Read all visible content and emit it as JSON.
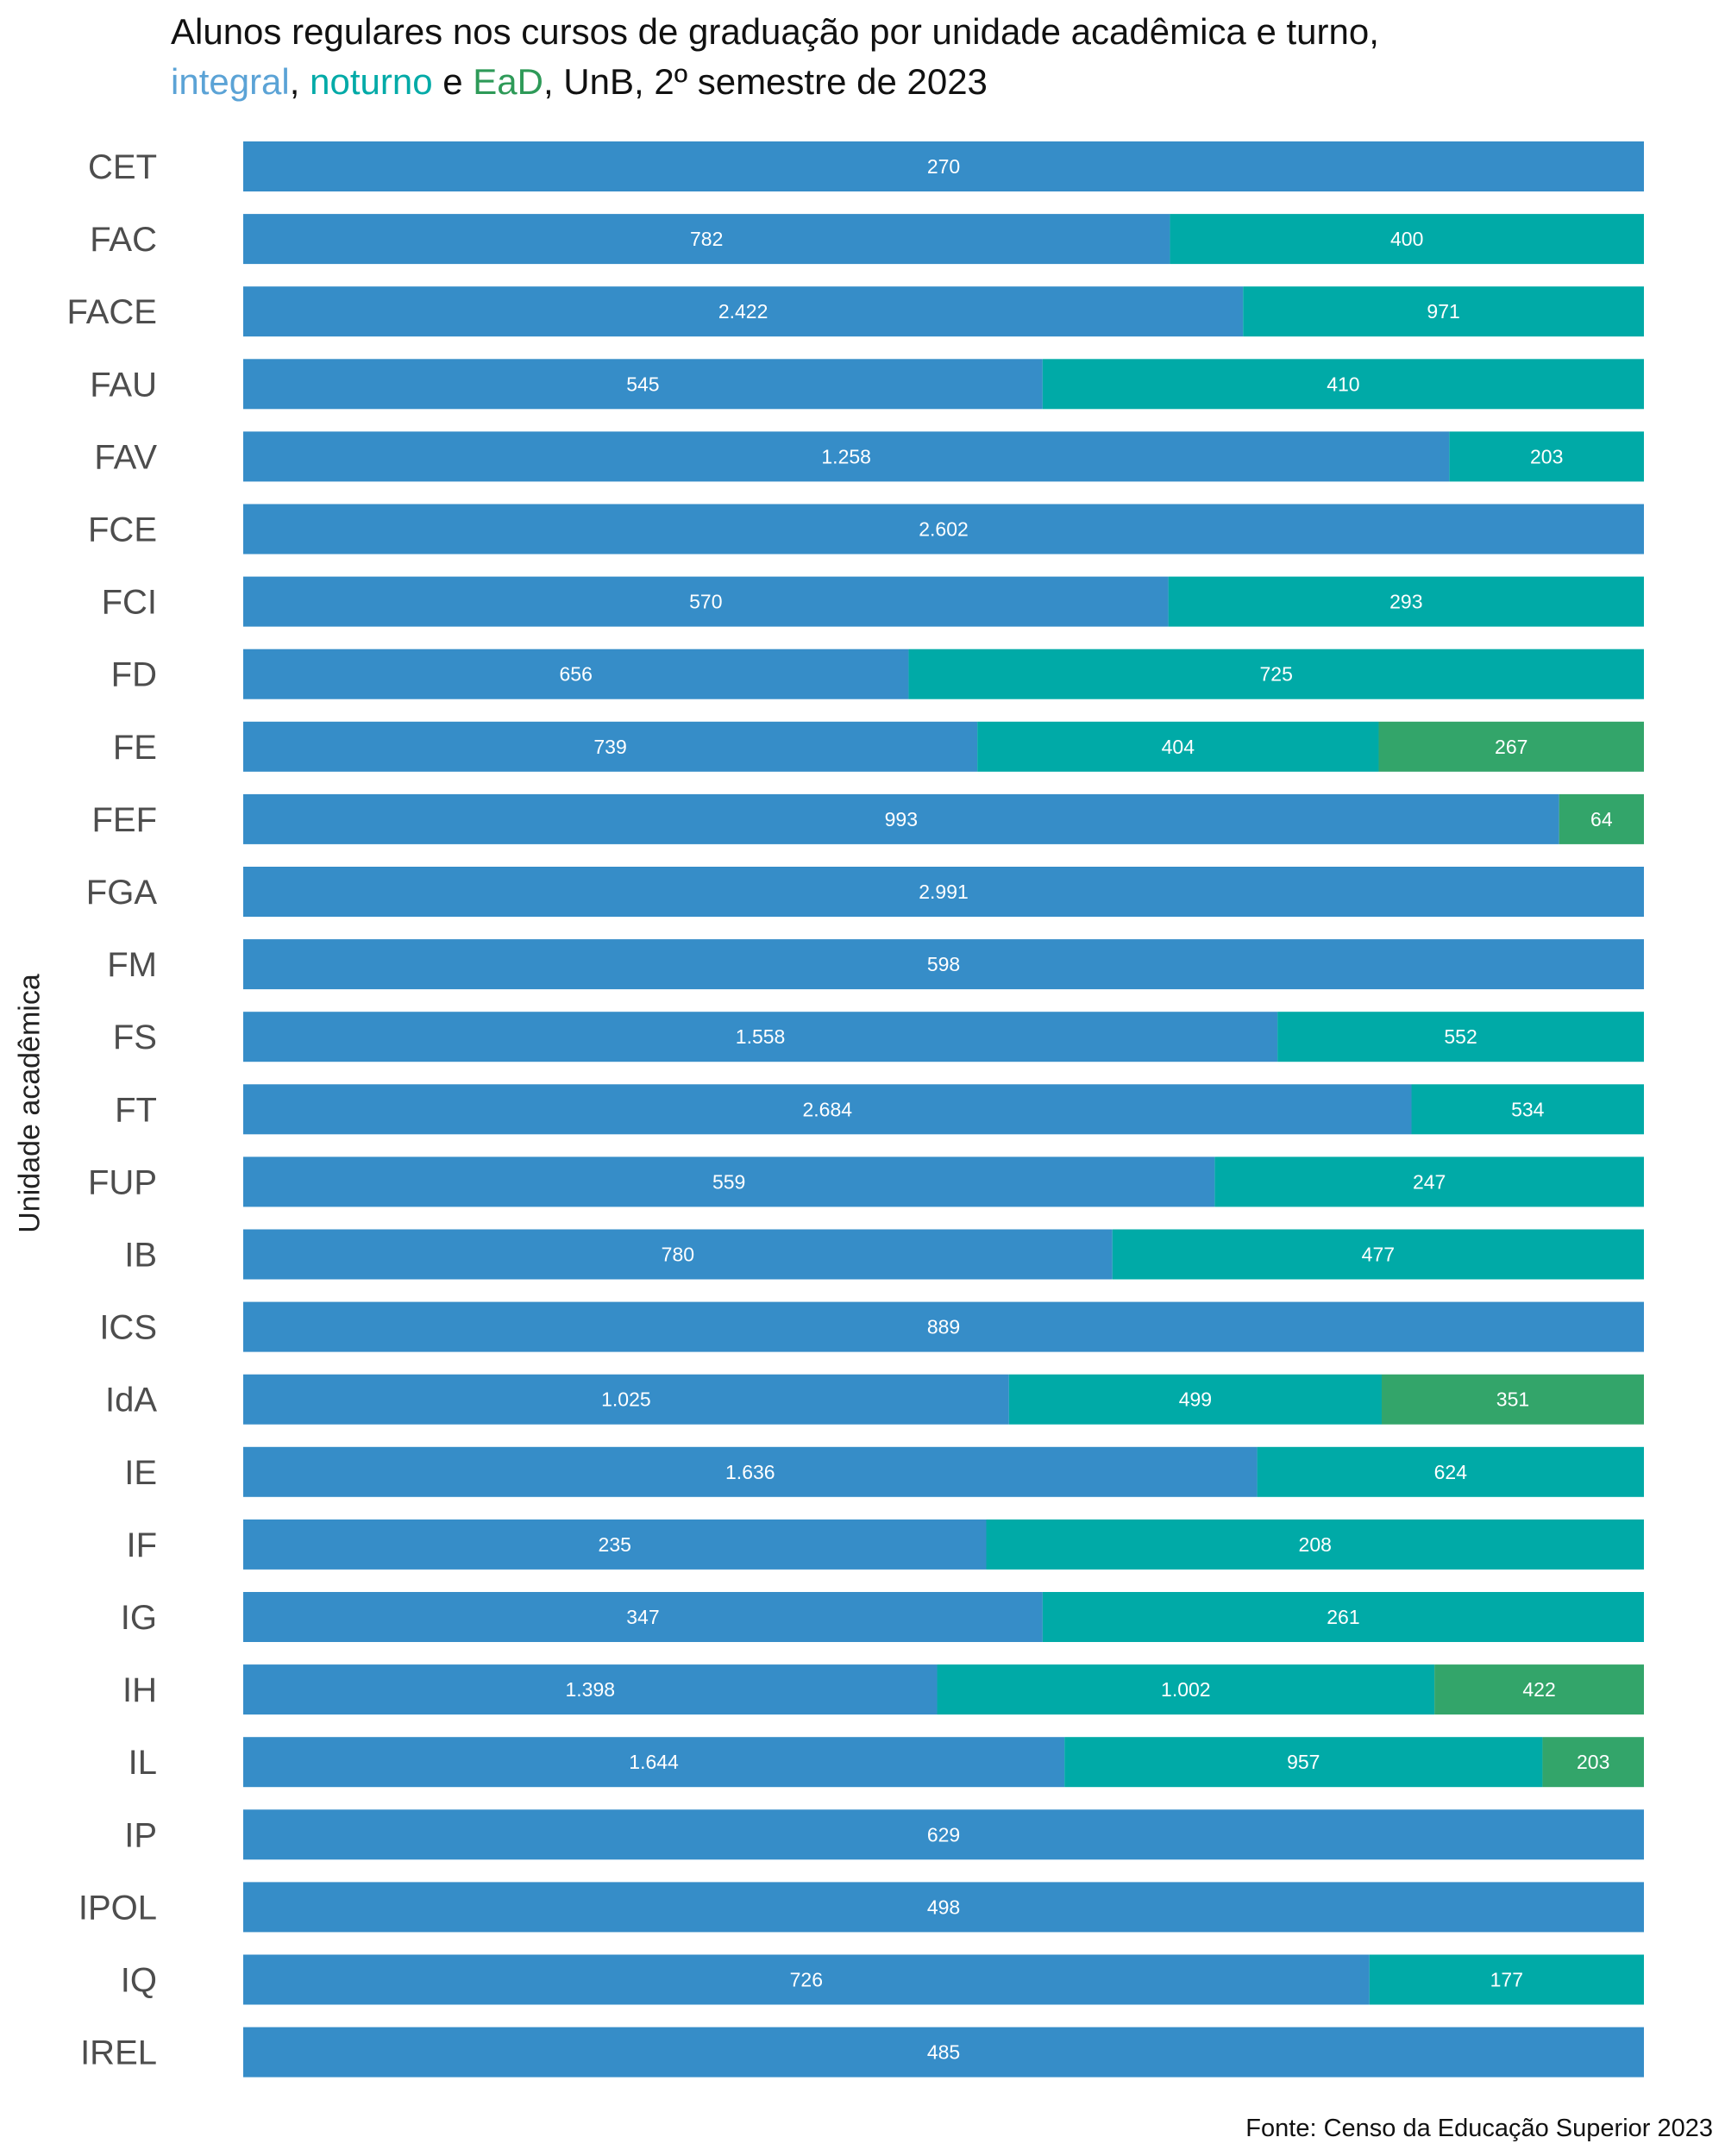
{
  "title": {
    "line1": "Alunos regulares nos cursos de graduação por unidade acadêmica e turno,",
    "w_integral": "integral",
    "sep1": ", ",
    "w_noturno": "noturno",
    "sep2": " e ",
    "w_ead": "EaD",
    "rest": ", UnB, 2º semestre de 2023"
  },
  "caption": "Fonte: Censo da Educação Superior 2023",
  "colors": {
    "integral": "#368dc8",
    "noturno": "#00aaa7",
    "ead": "#33a56a",
    "axis_text": "#4d4d4d",
    "label_text": "#ffffff"
  },
  "chart_data": {
    "type": "bar",
    "orientation": "horizontal",
    "stacking": "percent",
    "ylabel": "Unidade acadêmica",
    "xlabel": "",
    "legend": "none (colors in title)",
    "grid": false,
    "categories": [
      "CET",
      "FAC",
      "FACE",
      "FAU",
      "FAV",
      "FCE",
      "FCI",
      "FD",
      "FE",
      "FEF",
      "FGA",
      "FM",
      "FS",
      "FT",
      "FUP",
      "IB",
      "ICS",
      "IdA",
      "IE",
      "IF",
      "IG",
      "IH",
      "IL",
      "IP",
      "IPOL",
      "IQ",
      "IREL"
    ],
    "series": [
      {
        "name": "integral",
        "values": [
          270,
          782,
          2422,
          545,
          1258,
          2602,
          570,
          656,
          739,
          993,
          2991,
          598,
          1558,
          2684,
          559,
          780,
          889,
          1025,
          1636,
          235,
          347,
          1398,
          1644,
          629,
          498,
          726,
          485
        ],
        "labels": [
          "270",
          "782",
          "2.422",
          "545",
          "1.258",
          "2.602",
          "570",
          "656",
          "739",
          "993",
          "2.991",
          "598",
          "1.558",
          "2.684",
          "559",
          "780",
          "889",
          "1.025",
          "1.636",
          "235",
          "347",
          "1.398",
          "1.644",
          "629",
          "498",
          "726",
          "485"
        ]
      },
      {
        "name": "noturno",
        "values": [
          null,
          400,
          971,
          410,
          203,
          null,
          293,
          725,
          404,
          0,
          null,
          null,
          552,
          534,
          247,
          477,
          null,
          499,
          624,
          208,
          261,
          1002,
          957,
          null,
          null,
          177,
          null
        ],
        "labels": [
          null,
          "400",
          "971",
          "410",
          "203",
          null,
          "293",
          "725",
          "404",
          "0",
          null,
          null,
          "552",
          "534",
          "247",
          "477",
          null,
          "499",
          "624",
          "208",
          "261",
          "1.002",
          "957",
          null,
          null,
          "177",
          null
        ]
      },
      {
        "name": "EaD",
        "values": [
          null,
          null,
          null,
          null,
          null,
          null,
          null,
          null,
          267,
          64,
          null,
          null,
          null,
          null,
          null,
          null,
          null,
          351,
          null,
          null,
          null,
          422,
          203,
          null,
          null,
          null,
          null
        ],
        "labels": [
          null,
          null,
          null,
          null,
          null,
          null,
          null,
          null,
          "267",
          "64",
          null,
          null,
          null,
          null,
          null,
          null,
          null,
          "351",
          null,
          null,
          null,
          "422",
          "203",
          null,
          null,
          null,
          null
        ]
      }
    ]
  }
}
